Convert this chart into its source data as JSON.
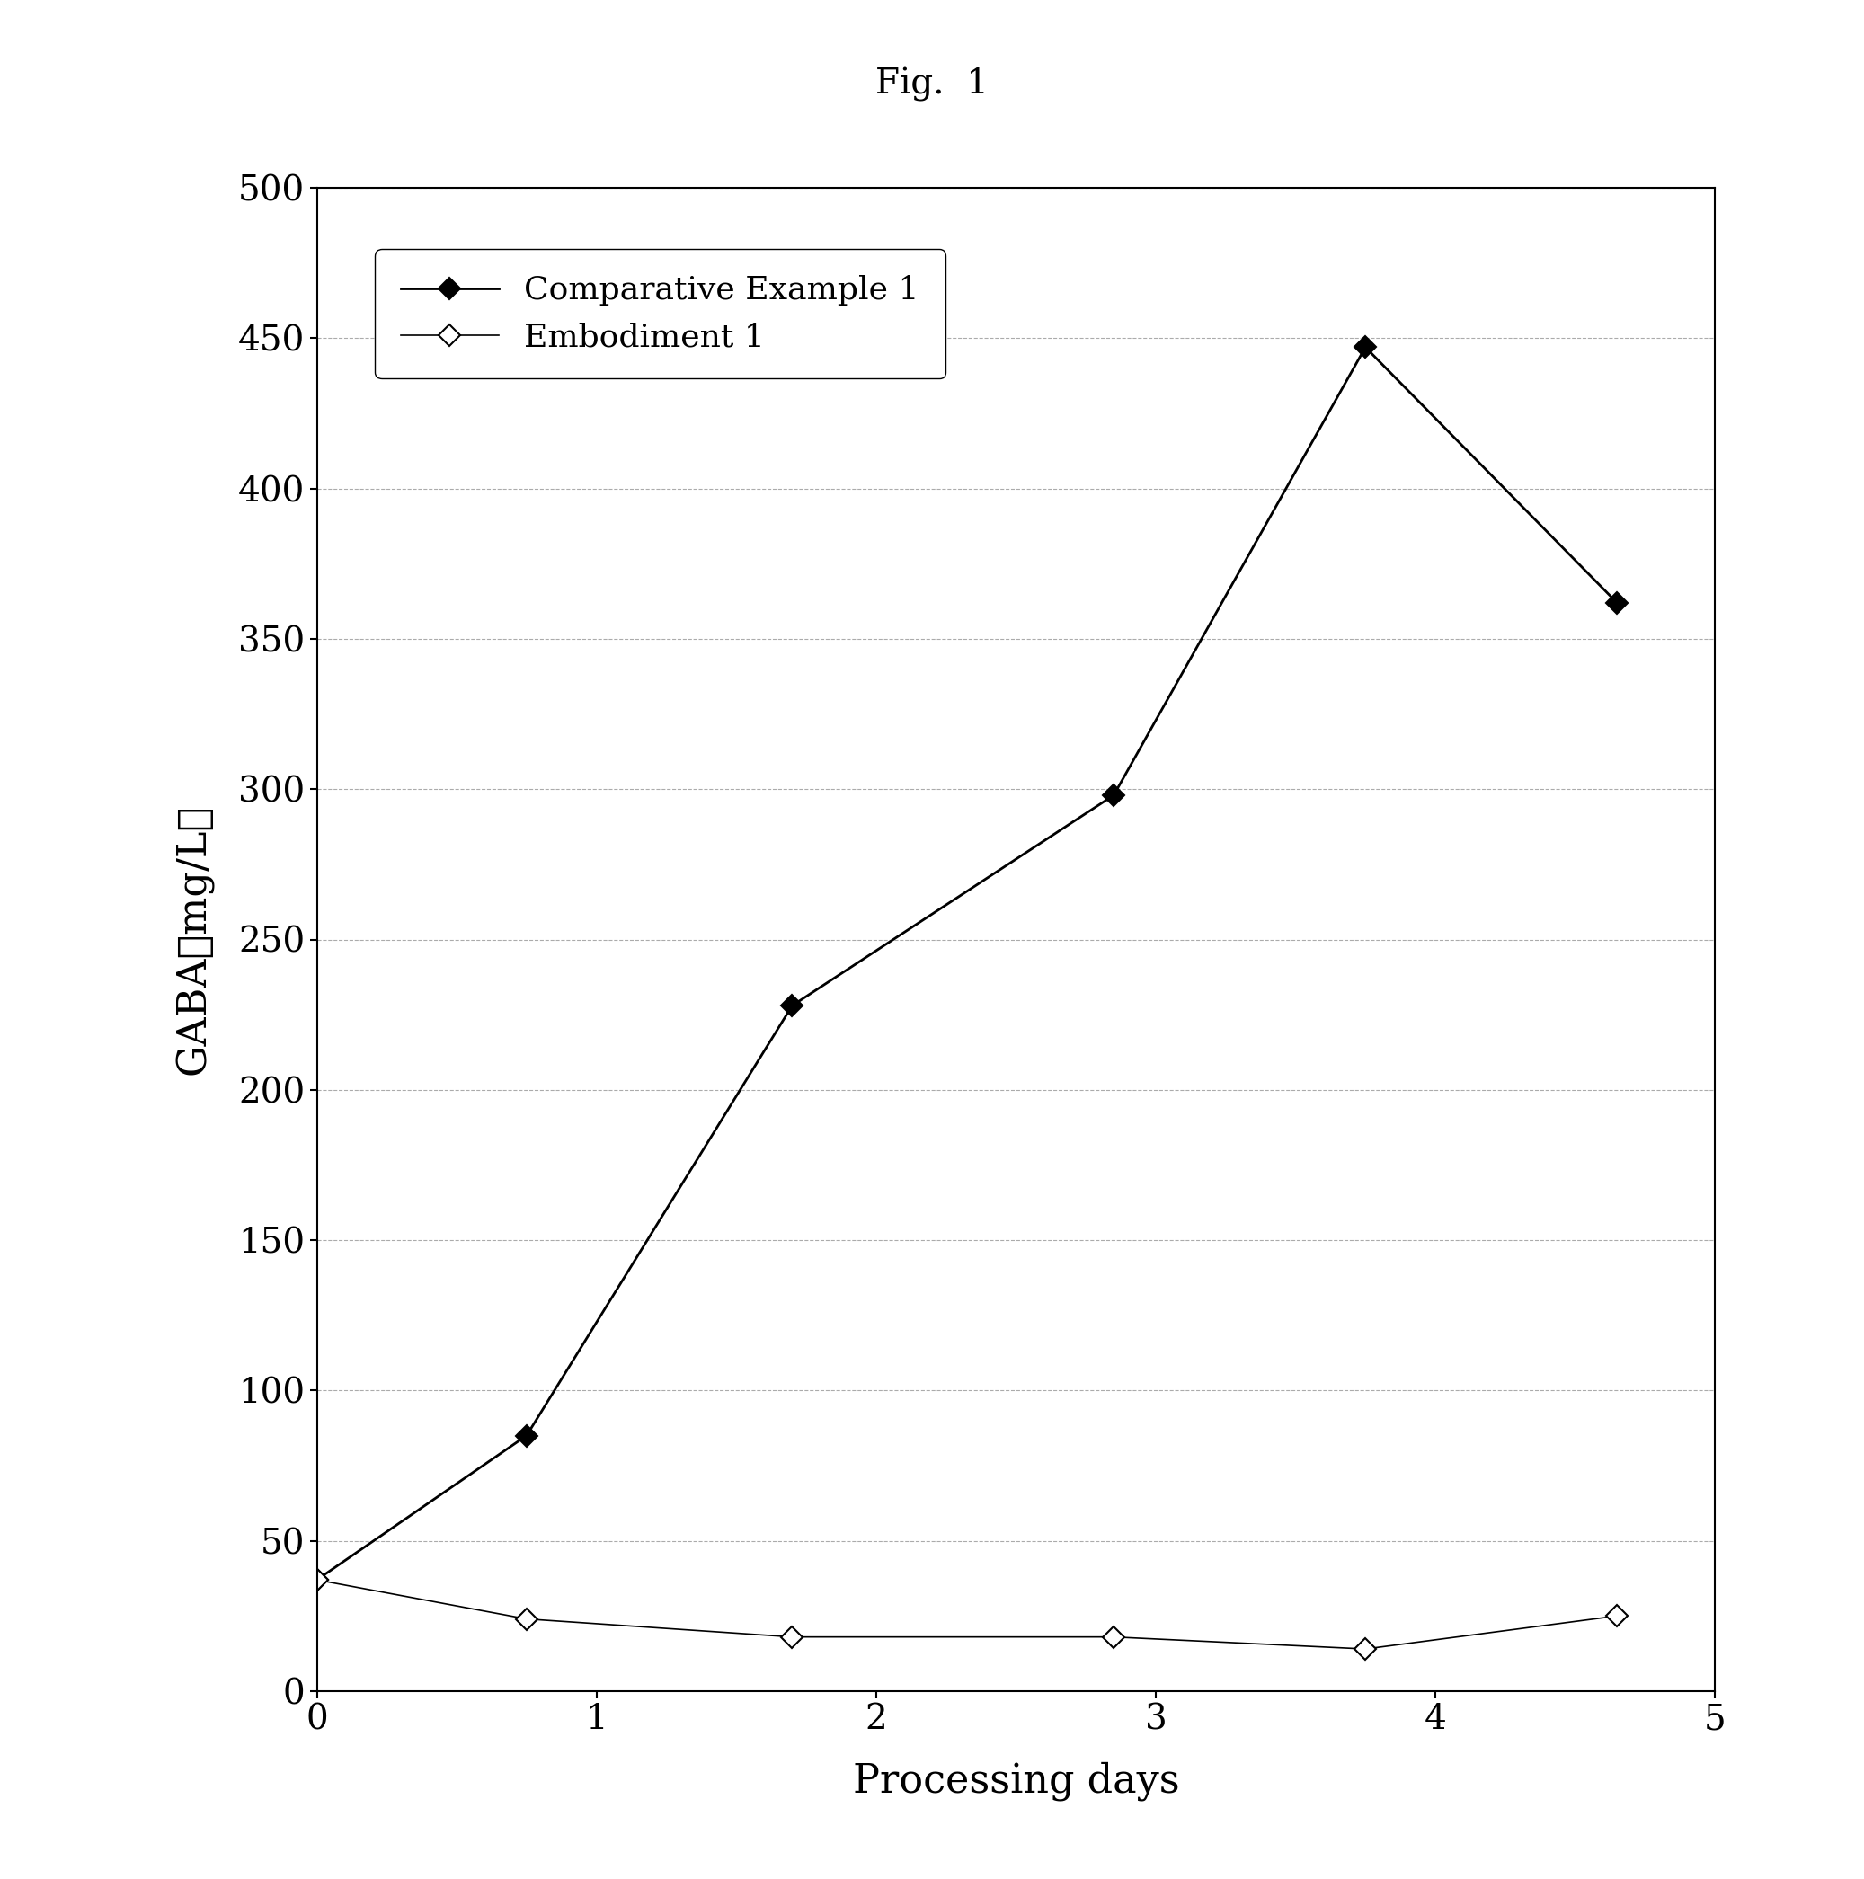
{
  "title": "Fig.  1",
  "xlabel": "Processing days",
  "ylabel": "GABA（mg/L）",
  "xlim": [
    0,
    5
  ],
  "ylim": [
    0,
    500
  ],
  "xticks": [
    0,
    1,
    2,
    3,
    4,
    5
  ],
  "yticks": [
    0,
    50,
    100,
    150,
    200,
    250,
    300,
    350,
    400,
    450,
    500
  ],
  "series": [
    {
      "label": "Comparative Example 1",
      "x": [
        0,
        0.75,
        1.7,
        2.85,
        3.75,
        4.65
      ],
      "y": [
        37,
        85,
        228,
        298,
        447,
        362
      ],
      "color": "#000000",
      "marker": "D",
      "markersize": 12,
      "markerfacecolor": "#000000",
      "linewidth": 2.0
    },
    {
      "label": "Embodiment 1",
      "x": [
        0,
        0.75,
        1.7,
        2.85,
        3.75,
        4.65
      ],
      "y": [
        37,
        24,
        18,
        18,
        14,
        25
      ],
      "color": "#000000",
      "marker": "D",
      "markersize": 12,
      "markerfacecolor": "#ffffff",
      "linewidth": 1.2
    }
  ],
  "background_color": "#ffffff",
  "grid_color": "#888888",
  "title_fontsize": 28,
  "axis_label_fontsize": 32,
  "tick_fontsize": 28,
  "legend_fontsize": 26
}
